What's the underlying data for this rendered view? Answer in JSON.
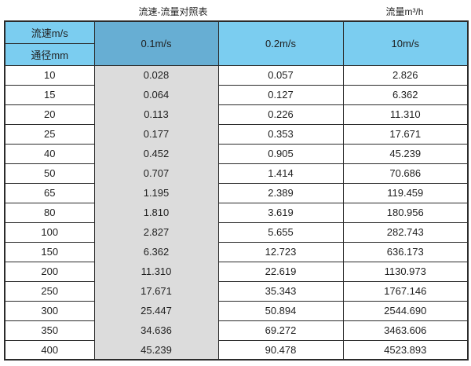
{
  "page": {
    "title_left": "流速-流量对照表",
    "title_right": "流量m³/h"
  },
  "table": {
    "corner": {
      "top": "流速m/s",
      "bottom": "通径mm"
    },
    "velocity_columns": [
      "0.1m/s",
      "0.2m/s",
      "10m/s"
    ],
    "rows": [
      {
        "diameter": "10",
        "values": [
          "0.028",
          "0.057",
          "2.826"
        ]
      },
      {
        "diameter": "15",
        "values": [
          "0.064",
          "0.127",
          "6.362"
        ]
      },
      {
        "diameter": "20",
        "values": [
          "0.113",
          "0.226",
          "11.310"
        ]
      },
      {
        "diameter": "25",
        "values": [
          "0.177",
          "0.353",
          "17.671"
        ]
      },
      {
        "diameter": "40",
        "values": [
          "0.452",
          "0.905",
          "45.239"
        ]
      },
      {
        "diameter": "50",
        "values": [
          "0.707",
          "1.414",
          "70.686"
        ]
      },
      {
        "diameter": "65",
        "values": [
          "1.195",
          "2.389",
          "119.459"
        ]
      },
      {
        "diameter": "80",
        "values": [
          "1.810",
          "3.619",
          "180.956"
        ]
      },
      {
        "diameter": "100",
        "values": [
          "2.827",
          "5.655",
          "282.743"
        ]
      },
      {
        "diameter": "150",
        "values": [
          "6.362",
          "12.723",
          "636.173"
        ]
      },
      {
        "diameter": "200",
        "values": [
          "11.310",
          "22.619",
          "1130.973"
        ]
      },
      {
        "diameter": "250",
        "values": [
          "17.671",
          "35.343",
          "1767.146"
        ]
      },
      {
        "diameter": "300",
        "values": [
          "25.447",
          "50.894",
          "2544.690"
        ]
      },
      {
        "diameter": "350",
        "values": [
          "34.636",
          "69.272",
          "3463.606"
        ]
      },
      {
        "diameter": "400",
        "values": [
          "45.239",
          "90.478",
          "4523.893"
        ]
      }
    ],
    "colors": {
      "header_light_blue": "#7bcdf0",
      "header_dark_blue": "#67aed3",
      "gray_column": "#dcdcdc",
      "border": "#2b2b2b"
    }
  },
  "chart_data": {
    "type": "table",
    "title": "流速-流量对照表",
    "unit_label": "流量m³/h",
    "column_axis_label": "流速m/s",
    "row_axis_label": "通径mm",
    "columns": [
      "0.1m/s",
      "0.2m/s",
      "10m/s"
    ],
    "rows": [
      {
        "diameter_mm": 10,
        "flow_m3_per_h": [
          0.028,
          0.057,
          2.826
        ]
      },
      {
        "diameter_mm": 15,
        "flow_m3_per_h": [
          0.064,
          0.127,
          6.362
        ]
      },
      {
        "diameter_mm": 20,
        "flow_m3_per_h": [
          0.113,
          0.226,
          11.31
        ]
      },
      {
        "diameter_mm": 25,
        "flow_m3_per_h": [
          0.177,
          0.353,
          17.671
        ]
      },
      {
        "diameter_mm": 40,
        "flow_m3_per_h": [
          0.452,
          0.905,
          45.239
        ]
      },
      {
        "diameter_mm": 50,
        "flow_m3_per_h": [
          0.707,
          1.414,
          70.686
        ]
      },
      {
        "diameter_mm": 65,
        "flow_m3_per_h": [
          1.195,
          2.389,
          119.459
        ]
      },
      {
        "diameter_mm": 80,
        "flow_m3_per_h": [
          1.81,
          3.619,
          180.956
        ]
      },
      {
        "diameter_mm": 100,
        "flow_m3_per_h": [
          2.827,
          5.655,
          282.743
        ]
      },
      {
        "diameter_mm": 150,
        "flow_m3_per_h": [
          6.362,
          12.723,
          636.173
        ]
      },
      {
        "diameter_mm": 200,
        "flow_m3_per_h": [
          11.31,
          22.619,
          1130.973
        ]
      },
      {
        "diameter_mm": 250,
        "flow_m3_per_h": [
          17.671,
          35.343,
          1767.146
        ]
      },
      {
        "diameter_mm": 300,
        "flow_m3_per_h": [
          25.447,
          50.894,
          2544.69
        ]
      },
      {
        "diameter_mm": 350,
        "flow_m3_per_h": [
          34.636,
          69.272,
          3463.606
        ]
      },
      {
        "diameter_mm": 400,
        "flow_m3_per_h": [
          45.239,
          90.478,
          4523.893
        ]
      }
    ]
  }
}
